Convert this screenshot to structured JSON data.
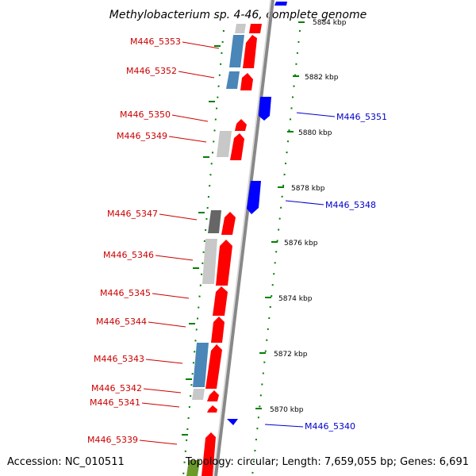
{
  "title": "Methylobacterium sp. 4-46, complete genome",
  "footer": {
    "accession": "Accession: NC_010511",
    "stats": "Topology: circular; Length: 7,659,055 bp; Genes: 6,691"
  },
  "colors": {
    "forward_gene": "#ff0000",
    "reverse_gene": "#0000ff",
    "gray_block": "#c8c8c8",
    "dark_gray_block": "#666666",
    "blue_block": "#4a86b8",
    "green_block": "#6b9a2a",
    "axis": "#888888",
    "tick": "#008000"
  },
  "ticks": [
    {
      "label": "5884 kbp",
      "kbp": 5884
    },
    {
      "label": "5882 kbp",
      "kbp": 5882
    },
    {
      "label": "5880 kbp",
      "kbp": 5880
    },
    {
      "label": "5878 kbp",
      "kbp": 5878
    },
    {
      "label": "5876 kbp",
      "kbp": 5876
    },
    {
      "label": "5874 kbp",
      "kbp": 5874
    },
    {
      "label": "5872 kbp",
      "kbp": 5872
    },
    {
      "label": "5870 kbp",
      "kbp": 5870
    }
  ],
  "genes_left": [
    {
      "label": "M446_5353",
      "name": "gene-M446_5353"
    },
    {
      "label": "M446_5352",
      "name": "gene-M446_5352"
    },
    {
      "label": "M446_5350",
      "name": "gene-M446_5350"
    },
    {
      "label": "M446_5349",
      "name": "gene-M446_5349"
    },
    {
      "label": "M446_5347",
      "name": "gene-M446_5347"
    },
    {
      "label": "M446_5346",
      "name": "gene-M446_5346"
    },
    {
      "label": "M446_5345",
      "name": "gene-M446_5345"
    },
    {
      "label": "M446_5344",
      "name": "gene-M446_5344"
    },
    {
      "label": "M446_5343",
      "name": "gene-M446_5343"
    },
    {
      "label": "M446_5342",
      "name": "gene-M446_5342"
    },
    {
      "label": "M446_5341",
      "name": "gene-M446_5341"
    },
    {
      "label": "M446_5339",
      "name": "gene-M446_5339"
    }
  ],
  "genes_right": [
    {
      "label": "M446_5351",
      "name": "gene-M446_5351"
    },
    {
      "label": "M446_5348",
      "name": "gene-M446_5348"
    },
    {
      "label": "M446_5340",
      "name": "gene-M446_5340"
    }
  ]
}
